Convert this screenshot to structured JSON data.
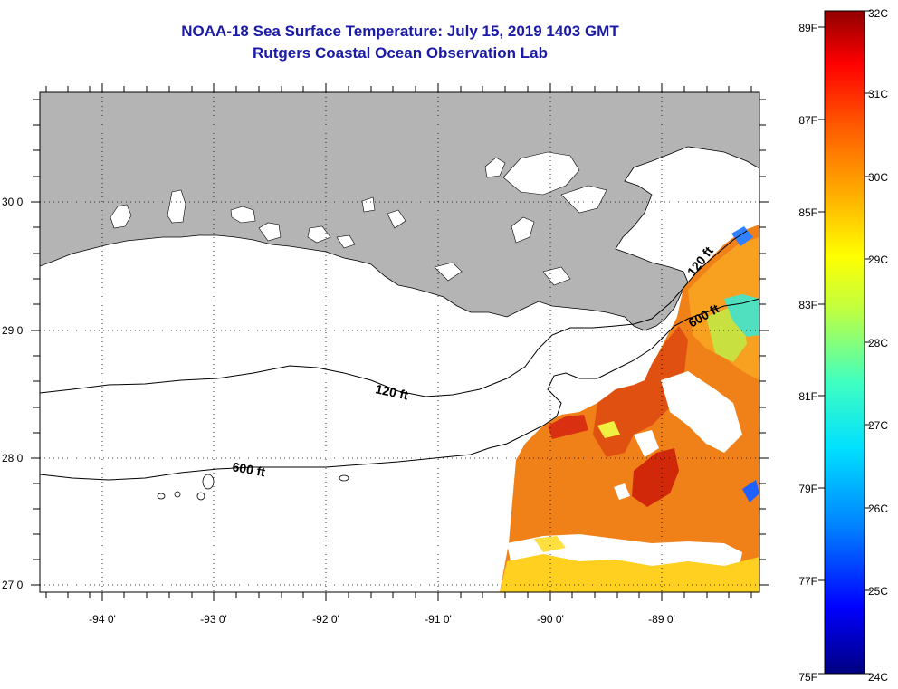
{
  "header": {
    "title": "NOAA-18 Sea Surface Temperature:  July 15, 2019 1403 GMT",
    "subtitle": "Rutgers Coastal Ocean Observation Lab"
  },
  "map": {
    "region": "Northern Gulf of Mexico / Louisiana coast",
    "lon_range": [
      -94.5,
      -88.2
    ],
    "lat_range": [
      26.95,
      30.9
    ],
    "lon_labels": [
      "-94 0'",
      "-93 0'",
      "-92 0'",
      "-91 0'",
      "-90 0'",
      "-89 0'"
    ],
    "lat_labels": [
      "30 0'",
      "29 0'",
      "28 0'",
      "27 0'"
    ],
    "land_color": "#b4b4b4",
    "grid_style": "dotted",
    "contours": [
      {
        "label": "120 ft"
      },
      {
        "label": "600 ft"
      }
    ]
  },
  "colorbar": {
    "min_c": 24,
    "max_c": 32,
    "celsius_labels": [
      "32C",
      "31C",
      "30C",
      "29C",
      "28C",
      "27C",
      "26C",
      "25C",
      "24C"
    ],
    "fahrenheit_labels": [
      "89F",
      "87F",
      "85F",
      "83F",
      "81F",
      "79F",
      "77F",
      "75F"
    ],
    "colors": [
      "#000080",
      "#0000ff",
      "#0080ff",
      "#00e0ff",
      "#40ffc0",
      "#c0ff40",
      "#ffff00",
      "#ffb000",
      "#ff6000",
      "#ff0000",
      "#900000"
    ]
  }
}
